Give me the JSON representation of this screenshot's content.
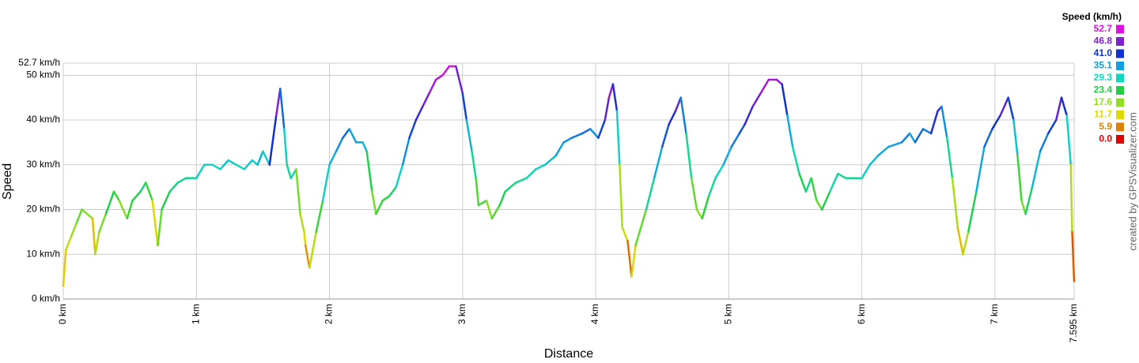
{
  "chart_data": {
    "type": "line",
    "x_label": "Distance",
    "y_label": "Speed",
    "credit": "created by GPSVisualizer.com",
    "xlim": [
      0,
      7.595
    ],
    "ylim": [
      0,
      52.7
    ],
    "xticks": [
      {
        "value": 0,
        "label": "0 km"
      },
      {
        "value": 1,
        "label": "1 km"
      },
      {
        "value": 2,
        "label": "2 km"
      },
      {
        "value": 3,
        "label": "3 km"
      },
      {
        "value": 4,
        "label": "4 km"
      },
      {
        "value": 5,
        "label": "5 km"
      },
      {
        "value": 6,
        "label": "6 km"
      },
      {
        "value": 7,
        "label": "7 km"
      },
      {
        "value": 7.595,
        "label": "7.595 km"
      }
    ],
    "yticks": [
      {
        "value": 0,
        "label": "0 km/h"
      },
      {
        "value": 10,
        "label": "10 km/h"
      },
      {
        "value": 20,
        "label": "20 km/h"
      },
      {
        "value": 30,
        "label": "30 km/h"
      },
      {
        "value": 40,
        "label": "40 km/h"
      },
      {
        "value": 50,
        "label": "50 km/h"
      },
      {
        "value": 52.7,
        "label": "52.7 km/h"
      }
    ],
    "grid": true,
    "legend": {
      "title": "Speed (km/h)",
      "items": [
        {
          "value": 52.7,
          "color": "#e010e0"
        },
        {
          "value": 46.8,
          "color": "#8020d0"
        },
        {
          "value": 41,
          "label": "41.0",
          "color": "#1030d0"
        },
        {
          "value": 35.1,
          "color": "#10a0e0"
        },
        {
          "value": 29.3,
          "color": "#10d8c0"
        },
        {
          "value": 23.4,
          "color": "#20d040"
        },
        {
          "value": 17.6,
          "color": "#90e020"
        },
        {
          "value": 11.7,
          "color": "#e0d800"
        },
        {
          "value": 5.9,
          "color": "#e08000"
        },
        {
          "value": 0,
          "label": "0.0",
          "color": "#e00000"
        }
      ]
    },
    "x": [
      0,
      0.02,
      0.06,
      0.1,
      0.14,
      0.18,
      0.22,
      0.24,
      0.27,
      0.32,
      0.38,
      0.42,
      0.48,
      0.52,
      0.58,
      0.62,
      0.67,
      0.71,
      0.74,
      0.8,
      0.86,
      0.92,
      1,
      1.06,
      1.12,
      1.18,
      1.24,
      1.3,
      1.36,
      1.42,
      1.46,
      1.5,
      1.55,
      1.6,
      1.63,
      1.66,
      1.68,
      1.71,
      1.75,
      1.78,
      1.81,
      1.82,
      1.85,
      1.9,
      1.95,
      2,
      2.05,
      2.1,
      2.15,
      2.2,
      2.25,
      2.28,
      2.32,
      2.35,
      2.4,
      2.45,
      2.5,
      2.55,
      2.6,
      2.65,
      2.7,
      2.75,
      2.8,
      2.85,
      2.9,
      2.95,
      3,
      3.03,
      3.07,
      3.1,
      3.12,
      3.18,
      3.22,
      3.28,
      3.32,
      3.4,
      3.48,
      3.55,
      3.62,
      3.7,
      3.76,
      3.82,
      3.9,
      3.96,
      4.02,
      4.07,
      4.1,
      4.13,
      4.16,
      4.18,
      4.2,
      4.24,
      4.27,
      4.3,
      4.38,
      4.44,
      4.5,
      4.55,
      4.6,
      4.64,
      4.68,
      4.72,
      4.76,
      4.8,
      4.85,
      4.9,
      4.96,
      5.02,
      5.08,
      5.12,
      5.18,
      5.24,
      5.3,
      5.36,
      5.4,
      5.44,
      5.48,
      5.53,
      5.58,
      5.62,
      5.66,
      5.7,
      5.76,
      5.82,
      5.88,
      6,
      6.06,
      6.12,
      6.2,
      6.3,
      6.36,
      6.4,
      6.46,
      6.52,
      6.57,
      6.6,
      6.64,
      6.68,
      6.72,
      6.76,
      6.8,
      6.86,
      6.92,
      6.98,
      7.04,
      7.1,
      7.14,
      7.17,
      7.2,
      7.23,
      7.28,
      7.34,
      7.4,
      7.46,
      7.5,
      7.54,
      7.57,
      7.58,
      7.595
    ],
    "values": [
      3,
      11,
      14,
      17,
      20,
      19,
      18,
      10,
      15,
      19,
      24,
      22,
      18,
      22,
      24,
      26,
      22,
      12,
      20,
      24,
      26,
      27,
      27,
      30,
      30,
      29,
      31,
      30,
      29,
      31,
      30,
      33,
      30,
      41,
      47,
      38,
      30,
      27,
      29,
      19,
      15,
      12,
      7,
      15,
      22,
      30,
      33,
      36,
      38,
      35,
      35,
      33,
      24,
      19,
      22,
      23,
      25,
      30,
      36,
      40,
      43,
      46,
      49,
      50,
      52,
      52,
      46,
      40,
      33,
      27,
      21,
      22,
      18,
      21,
      24,
      26,
      27,
      29,
      30,
      32,
      35,
      36,
      37,
      38,
      36,
      40,
      45,
      48,
      42,
      30,
      16,
      13,
      5,
      12,
      20,
      27,
      34,
      39,
      42,
      45,
      37,
      27,
      20,
      18,
      23,
      27,
      30,
      34,
      37,
      39,
      43,
      46,
      49,
      49,
      48,
      41,
      34,
      28,
      24,
      27,
      22,
      20,
      24,
      28,
      27,
      27,
      30,
      32,
      34,
      35,
      37,
      35,
      38,
      37,
      42,
      43,
      36,
      27,
      16,
      10,
      15,
      24,
      34,
      38,
      41,
      45,
      40,
      32,
      22,
      19,
      25,
      33,
      37,
      40,
      45,
      41,
      30,
      15,
      4
    ]
  }
}
